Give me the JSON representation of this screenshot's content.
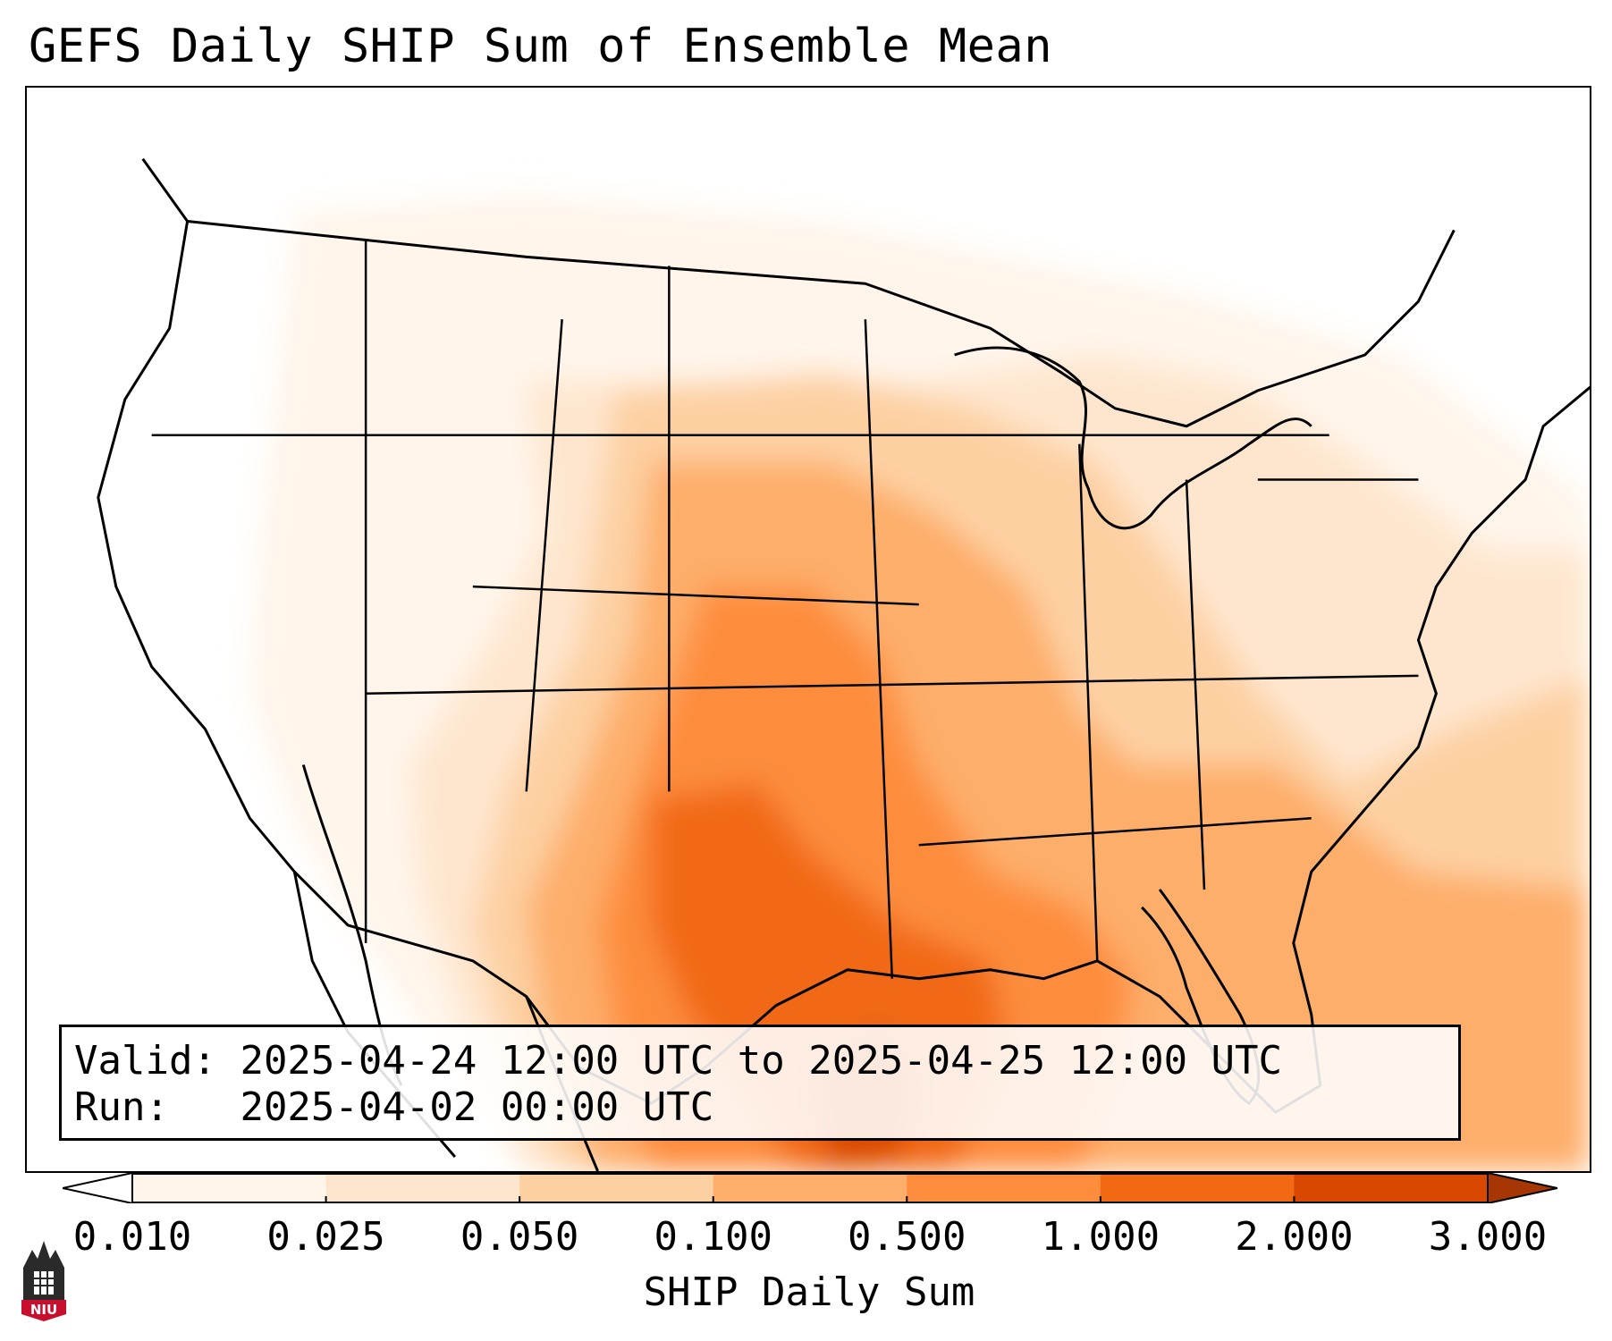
{
  "title": "GEFS Daily SHIP Sum of Ensemble Mean",
  "info": {
    "valid_label": "Valid:",
    "valid_value": "2025-04-24 12:00 UTC to 2025-04-25 12:00 UTC",
    "run_label": "Run:",
    "run_value": "2025-04-02 00:00 UTC"
  },
  "colorbar": {
    "label": "SHIP Daily Sum",
    "ticks": [
      "0.010",
      "0.025",
      "0.050",
      "0.100",
      "0.500",
      "1.000",
      "2.000",
      "3.000"
    ],
    "colors": [
      "#fff5eb",
      "#fee6ce",
      "#fdd0a2",
      "#fdae6b",
      "#fd8d3c",
      "#f16913",
      "#d94801"
    ],
    "extend_under_color": "#ffffff",
    "extend_over_color": "#a63603"
  },
  "logo": {
    "text": "NIU",
    "color": "#c8102e"
  }
}
